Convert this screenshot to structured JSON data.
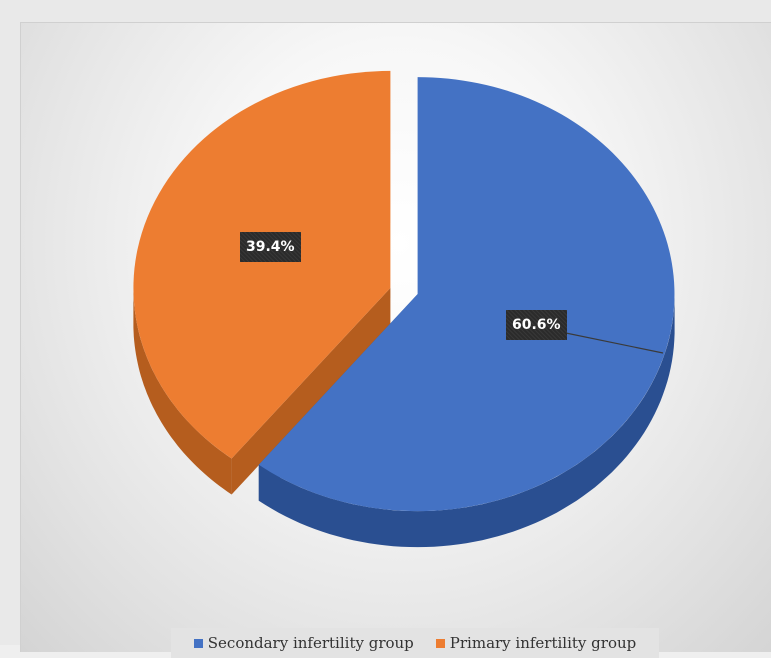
{
  "chart_data": {
    "type": "pie",
    "title": "",
    "slices": [
      {
        "label": "Secondary infertility group",
        "value": 60.6,
        "display": "60.6%",
        "color": "#4472c4",
        "side_color": "#2a4f91"
      },
      {
        "label": "Primary infertility group",
        "value": 39.4,
        "display": "39.4%",
        "color": "#ed7d31",
        "side_color": "#b55d1e"
      }
    ],
    "start_angle": "12 o'clock, clockwise",
    "exploded": true,
    "style": "3d",
    "legend_position": "bottom"
  }
}
